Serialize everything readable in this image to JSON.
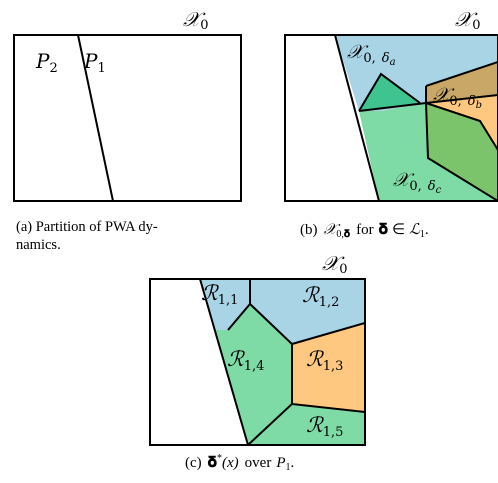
{
  "panel_a": {
    "region_label": "𝒳",
    "region_sub": "0",
    "left_label": "P",
    "left_sub": "2",
    "right_label": "P",
    "right_sub": "1",
    "caption_line1": "(a) Partition of PWA dy-",
    "caption_line2": "namics."
  },
  "panel_b": {
    "region_label": "𝒳",
    "region_sub": "0",
    "a_label": "𝒳",
    "a_sub": "0,",
    "a_delta": "δ",
    "a_delta_sub": "a",
    "b_label": "𝒳",
    "b_sub": "0,",
    "b_delta": "δ",
    "b_delta_sub": "b",
    "c_label": "𝒳",
    "c_sub": "0,",
    "c_delta": "δ",
    "c_delta_sub": "c",
    "caption_prefix": "(b)",
    "caption_x": "𝒳",
    "caption_x_sub": "0,",
    "caption_x_delta": "𝛅",
    "caption_for": "for",
    "caption_delta": "𝛅",
    "caption_in": "∈",
    "caption_L": "ℒ",
    "caption_L_sub": "1",
    "caption_end": "."
  },
  "panel_c": {
    "region_label": "𝒳",
    "region_sub": "0",
    "r11": "ℛ",
    "r11_sub": "1,1",
    "r12": "ℛ",
    "r12_sub": "1,2",
    "r13": "ℛ",
    "r13_sub": "1,3",
    "r14": "ℛ",
    "r14_sub": "1,4",
    "r15": "ℛ",
    "r15_sub": "1,5",
    "caption_prefix": "(c)",
    "caption_delta": "𝛅",
    "caption_star": "*",
    "caption_x": "(x)",
    "caption_over": "over",
    "caption_P": "P",
    "caption_P_sub": "1",
    "caption_end": "."
  },
  "colors": {
    "blue": "#a8d4e6",
    "green": "#7fdba6",
    "orange": "#fec880",
    "teal": "#3fc38f",
    "olive": "#c9a867",
    "dark_green": "#7cc46c"
  }
}
